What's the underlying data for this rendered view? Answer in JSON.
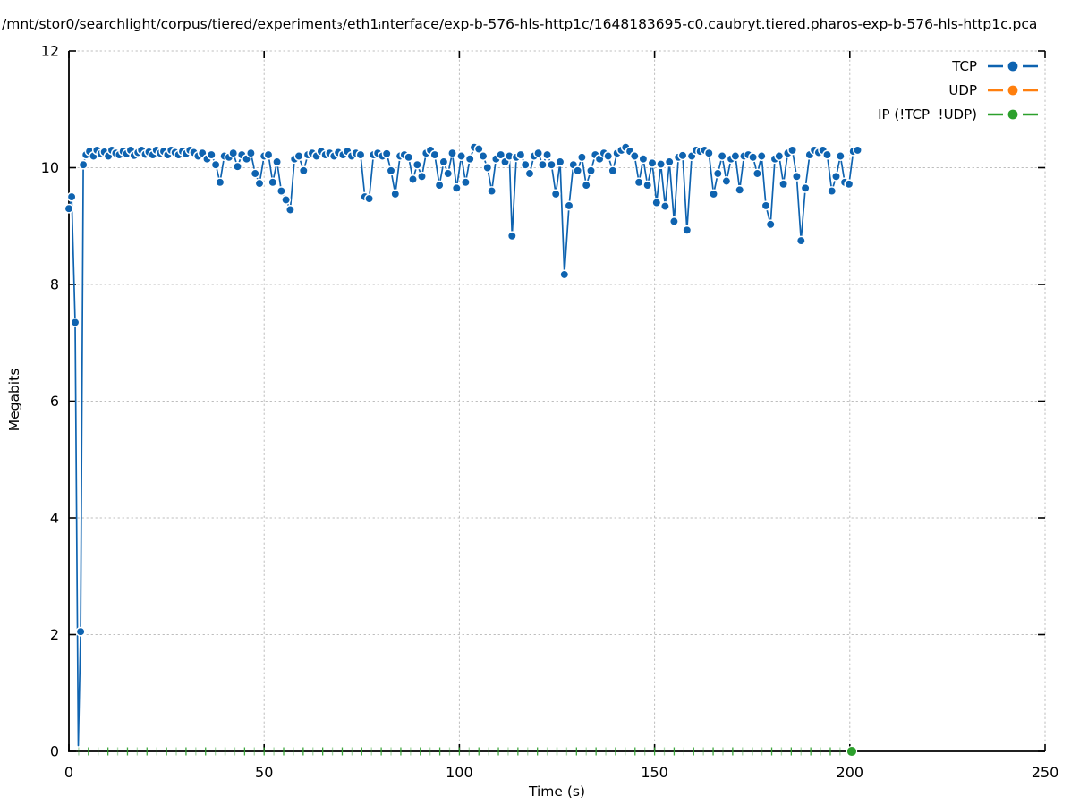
{
  "chart_data": {
    "type": "line",
    "title": "/mnt/stor0/searchlight/corpus/tiered/experiment₃/eth1ᵢnterface/exp-b-576-hls-http1c/1648183695-c0.caubryt.tiered.pharos-exp-b-576-hls-http1c.pca",
    "xlabel": "Time (s)",
    "ylabel": "Megabits",
    "xlim": [
      0,
      250
    ],
    "ylim": [
      0,
      12
    ],
    "x_ticks": [
      0,
      50,
      100,
      150,
      200,
      250
    ],
    "y_ticks": [
      0,
      2,
      4,
      6,
      8,
      10,
      12
    ],
    "grid": "dotted lines at major ticks, dotted top and right border",
    "legend_position": "inside top-right",
    "marker_style": "filled circle with white edge",
    "series": [
      {
        "name": "TCP",
        "color": "#0e63b0",
        "marker": "circle",
        "points": [
          [
            0,
            9.3
          ],
          [
            0.7,
            9.5
          ],
          [
            1.6,
            7.35
          ],
          [
            2.4,
            0.1,
            0
          ],
          [
            3.0,
            2.05
          ],
          [
            3.7,
            10.05
          ],
          [
            4.4,
            10.22
          ],
          [
            5.3,
            10.28
          ],
          [
            6.3,
            10.2
          ],
          [
            7.2,
            10.3
          ],
          [
            8.2,
            10.24
          ],
          [
            9.1,
            10.27
          ],
          [
            10.1,
            10.2
          ],
          [
            11.0,
            10.3
          ],
          [
            12.0,
            10.25
          ],
          [
            12.9,
            10.22
          ],
          [
            13.9,
            10.28
          ],
          [
            14.8,
            10.24
          ],
          [
            15.8,
            10.3
          ],
          [
            16.7,
            10.21
          ],
          [
            17.7,
            10.26
          ],
          [
            18.6,
            10.3
          ],
          [
            19.6,
            10.23
          ],
          [
            20.5,
            10.27
          ],
          [
            21.5,
            10.22
          ],
          [
            22.4,
            10.3
          ],
          [
            23.4,
            10.25
          ],
          [
            24.3,
            10.28
          ],
          [
            25.3,
            10.22
          ],
          [
            26.2,
            10.3
          ],
          [
            27.2,
            10.26
          ],
          [
            28.1,
            10.22
          ],
          [
            29.1,
            10.28
          ],
          [
            30.0,
            10.24
          ],
          [
            31.0,
            10.3
          ],
          [
            32.0,
            10.26
          ],
          [
            33.1,
            10.2
          ],
          [
            34.2,
            10.25
          ],
          [
            35.4,
            10.15
          ],
          [
            36.5,
            10.22
          ],
          [
            37.6,
            10.05
          ],
          [
            38.7,
            9.75
          ],
          [
            39.8,
            10.2
          ],
          [
            41.0,
            10.18
          ],
          [
            42.1,
            10.25
          ],
          [
            43.2,
            10.02
          ],
          [
            44.3,
            10.22
          ],
          [
            45.5,
            10.15
          ],
          [
            46.6,
            10.25
          ],
          [
            47.7,
            9.9
          ],
          [
            48.8,
            9.73
          ],
          [
            50.0,
            10.2
          ],
          [
            51.1,
            10.22
          ],
          [
            52.2,
            9.75
          ],
          [
            53.3,
            10.1
          ],
          [
            54.4,
            9.6
          ],
          [
            55.6,
            9.45
          ],
          [
            56.7,
            9.28
          ],
          [
            57.8,
            10.15
          ],
          [
            58.9,
            10.2
          ],
          [
            60.1,
            9.95
          ],
          [
            61.2,
            10.22
          ],
          [
            62.3,
            10.25
          ],
          [
            63.4,
            10.2
          ],
          [
            64.6,
            10.28
          ],
          [
            65.7,
            10.22
          ],
          [
            66.8,
            10.25
          ],
          [
            67.9,
            10.2
          ],
          [
            69.0,
            10.26
          ],
          [
            70.2,
            10.22
          ],
          [
            71.3,
            10.28
          ],
          [
            72.4,
            10.2
          ],
          [
            73.5,
            10.25
          ],
          [
            74.7,
            10.22
          ],
          [
            75.8,
            9.5
          ],
          [
            76.9,
            9.47
          ],
          [
            78.0,
            10.22
          ],
          [
            79.1,
            10.25
          ],
          [
            80.3,
            10.2
          ],
          [
            81.4,
            10.24
          ],
          [
            82.5,
            9.95
          ],
          [
            83.6,
            9.55
          ],
          [
            84.8,
            10.2
          ],
          [
            85.9,
            10.22
          ],
          [
            87.0,
            10.18
          ],
          [
            88.1,
            9.8
          ],
          [
            89.2,
            10.05
          ],
          [
            90.4,
            9.85
          ],
          [
            91.5,
            10.25
          ],
          [
            92.6,
            10.3
          ],
          [
            93.7,
            10.22
          ],
          [
            94.9,
            9.7
          ],
          [
            96.0,
            10.1
          ],
          [
            97.1,
            9.9
          ],
          [
            98.2,
            10.25
          ],
          [
            99.3,
            9.65
          ],
          [
            100.5,
            10.2
          ],
          [
            101.6,
            9.75
          ],
          [
            102.7,
            10.15
          ],
          [
            103.8,
            10.35
          ],
          [
            105.0,
            10.32
          ],
          [
            106.1,
            10.2
          ],
          [
            107.2,
            10.0
          ],
          [
            108.3,
            9.6
          ],
          [
            109.4,
            10.15
          ],
          [
            110.6,
            10.22
          ],
          [
            111.7,
            10.1
          ],
          [
            112.8,
            10.2
          ],
          [
            113.5,
            8.83
          ],
          [
            114.6,
            10.18
          ],
          [
            115.7,
            10.22
          ],
          [
            116.9,
            10.05
          ],
          [
            118.0,
            9.9
          ],
          [
            119.1,
            10.2
          ],
          [
            120.2,
            10.25
          ],
          [
            121.3,
            10.05
          ],
          [
            122.5,
            10.22
          ],
          [
            123.6,
            10.05
          ],
          [
            124.7,
            9.55
          ],
          [
            125.8,
            10.1
          ],
          [
            126.9,
            8.17
          ],
          [
            128.1,
            9.35
          ],
          [
            129.2,
            10.05
          ],
          [
            130.3,
            9.95
          ],
          [
            131.4,
            10.18
          ],
          [
            132.5,
            9.7
          ],
          [
            133.7,
            9.95
          ],
          [
            134.8,
            10.22
          ],
          [
            135.9,
            10.15
          ],
          [
            137.0,
            10.25
          ],
          [
            138.1,
            10.2
          ],
          [
            139.3,
            9.95
          ],
          [
            140.4,
            10.25
          ],
          [
            141.5,
            10.3
          ],
          [
            142.6,
            10.35
          ],
          [
            143.7,
            10.28
          ],
          [
            144.9,
            10.2
          ],
          [
            146.0,
            9.75
          ],
          [
            147.1,
            10.15
          ],
          [
            148.2,
            9.7
          ],
          [
            149.4,
            10.08
          ],
          [
            150.5,
            9.4
          ],
          [
            151.6,
            10.06
          ],
          [
            152.7,
            9.34
          ],
          [
            153.8,
            10.1
          ],
          [
            155.0,
            9.08
          ],
          [
            156.1,
            10.18
          ],
          [
            157.2,
            10.21
          ],
          [
            158.3,
            8.93
          ],
          [
            159.5,
            10.2
          ],
          [
            160.6,
            10.3
          ],
          [
            161.7,
            10.28
          ],
          [
            162.8,
            10.3
          ],
          [
            163.9,
            10.25
          ],
          [
            165.1,
            9.55
          ],
          [
            166.2,
            9.9
          ],
          [
            167.3,
            10.2
          ],
          [
            168.4,
            9.77
          ],
          [
            169.6,
            10.15
          ],
          [
            170.7,
            10.2
          ],
          [
            171.8,
            9.62
          ],
          [
            172.9,
            10.2
          ],
          [
            174.0,
            10.22
          ],
          [
            175.2,
            10.18
          ],
          [
            176.3,
            9.9
          ],
          [
            177.4,
            10.2
          ],
          [
            178.5,
            9.35
          ],
          [
            179.7,
            9.03
          ],
          [
            180.8,
            10.15
          ],
          [
            181.9,
            10.2
          ],
          [
            183.0,
            9.72
          ],
          [
            184.1,
            10.25
          ],
          [
            185.3,
            10.3
          ],
          [
            186.4,
            9.85
          ],
          [
            187.5,
            8.75
          ],
          [
            188.6,
            9.65
          ],
          [
            189.7,
            10.22
          ],
          [
            190.9,
            10.3
          ],
          [
            192.0,
            10.26
          ],
          [
            193.1,
            10.3
          ],
          [
            194.2,
            10.22
          ],
          [
            195.4,
            9.6
          ],
          [
            196.5,
            9.85
          ],
          [
            197.6,
            10.2
          ],
          [
            198.7,
            9.75
          ],
          [
            199.8,
            9.72
          ],
          [
            200.9,
            10.28
          ],
          [
            202.0,
            10.3
          ]
        ]
      },
      {
        "name": "UDP",
        "color": "#ff7f0e",
        "marker": "circle",
        "points": []
      },
      {
        "name": "IP (!TCP  !UDP)",
        "color": "#2ca02c",
        "marker": "circle",
        "baseline_ticks": {
          "start": 2.5,
          "end": 200,
          "step": 2.5,
          "y": 0
        },
        "marker_point": [
          200.5,
          0
        ]
      }
    ]
  }
}
